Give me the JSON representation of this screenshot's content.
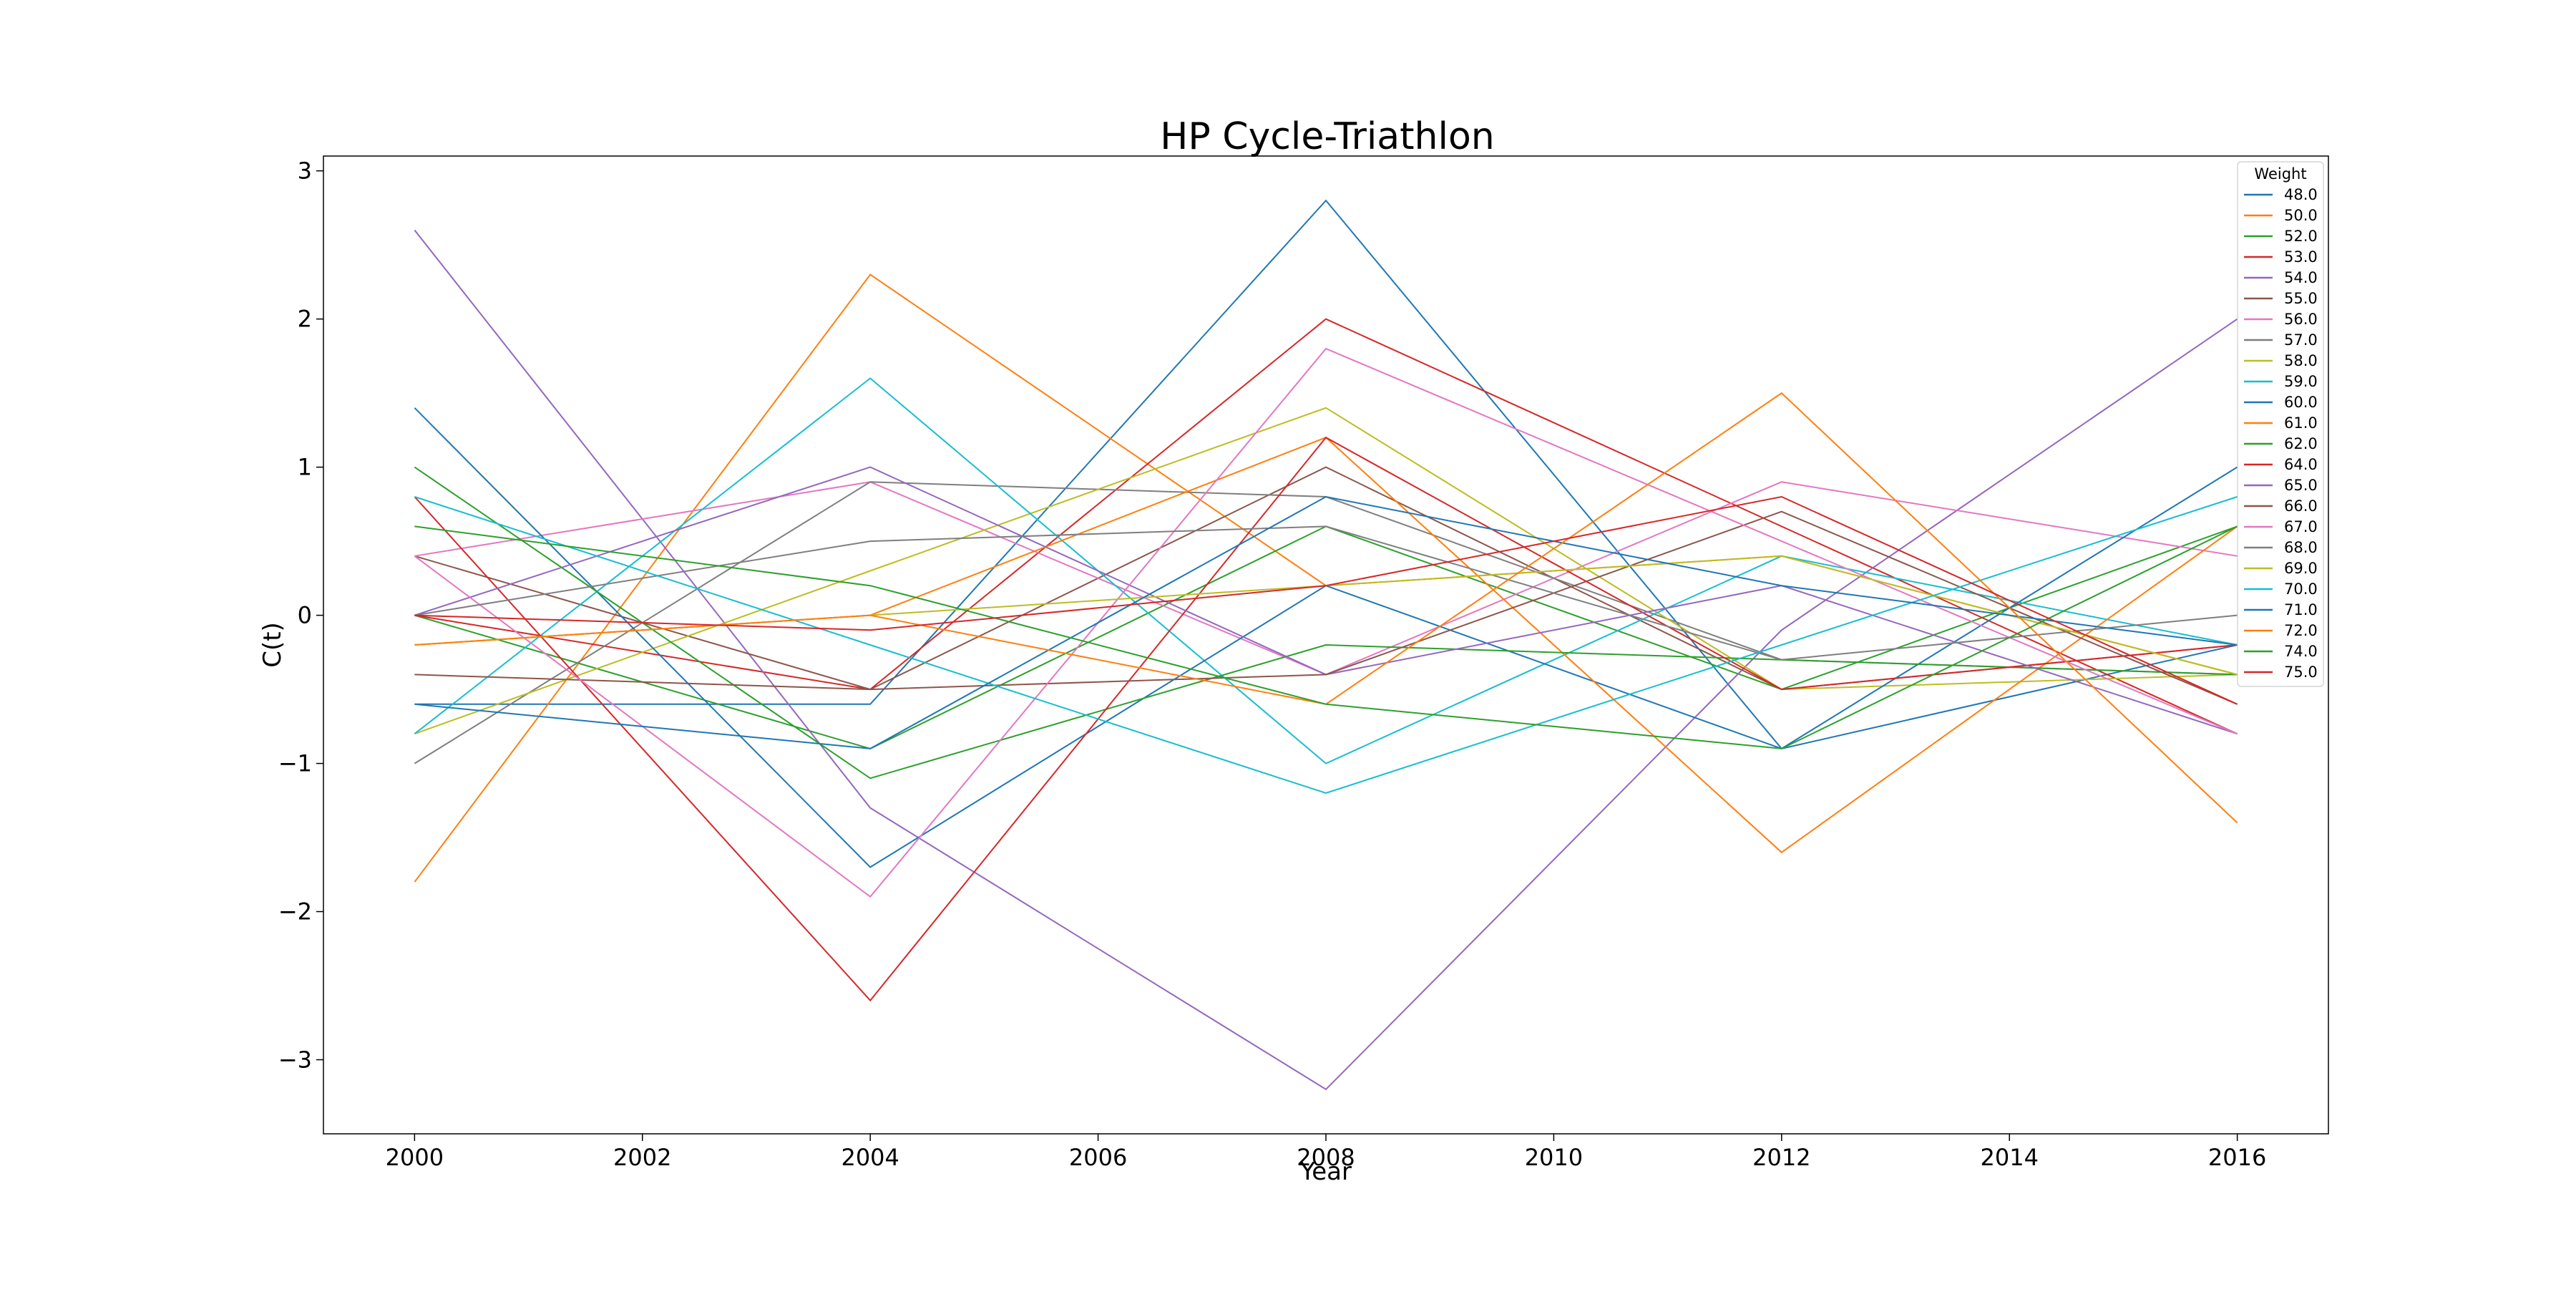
{
  "chart_data": {
    "type": "line",
    "title": "HP Cycle-Triathlon",
    "xlabel": "Year",
    "ylabel": "C(t)",
    "x": [
      2000,
      2004,
      2008,
      2012,
      2016
    ],
    "xlim": [
      1999.2,
      2016.8
    ],
    "ylim": [
      -3.5,
      3.1
    ],
    "xticks": [
      "2000",
      "2002",
      "2004",
      "2006",
      "2008",
      "2010",
      "2012",
      "2014",
      "2016"
    ],
    "yticks": [
      "3",
      "2",
      "1",
      "0",
      "−1",
      "−2",
      "−3"
    ],
    "grid": false,
    "legend": {
      "title": "Weight",
      "placement": "top-right"
    },
    "series": [
      {
        "name": "48.0",
        "color": "#1f77b4",
        "values": [
          -0.6,
          -0.6,
          2.8,
          -0.9,
          -0.2
        ]
      },
      {
        "name": "50.0",
        "color": "#ff7f0e",
        "values": [
          -1.8,
          2.3,
          0.2,
          0.4,
          -0.4
        ]
      },
      {
        "name": "52.0",
        "color": "#2ca02c",
        "values": [
          0.0,
          -0.9,
          0.6,
          -0.5,
          0.6
        ]
      },
      {
        "name": "53.0",
        "color": "#d62728",
        "values": [
          0.0,
          -0.5,
          2.0,
          0.6,
          -0.8
        ]
      },
      {
        "name": "54.0",
        "color": "#9467bd",
        "values": [
          2.6,
          -1.3,
          -3.2,
          -0.1,
          2.0
        ]
      },
      {
        "name": "55.0",
        "color": "#8c564b",
        "values": [
          0.4,
          -0.5,
          1.0,
          -0.5,
          -0.2
        ]
      },
      {
        "name": "56.0",
        "color": "#e377c2",
        "values": [
          0.4,
          0.9,
          -0.4,
          0.9,
          0.4
        ]
      },
      {
        "name": "57.0",
        "color": "#7f7f7f",
        "values": [
          -1.0,
          0.9,
          0.8,
          -0.3,
          -0.4
        ]
      },
      {
        "name": "58.0",
        "color": "#bcbd22",
        "values": [
          -0.8,
          0.3,
          1.4,
          -0.5,
          -0.4
        ]
      },
      {
        "name": "59.0",
        "color": "#17becf",
        "values": [
          -0.8,
          1.6,
          -1.0,
          0.4,
          -0.2
        ]
      },
      {
        "name": "60.0",
        "color": "#1f77b4",
        "values": [
          1.4,
          -1.7,
          0.2,
          -0.9,
          1.0
        ]
      },
      {
        "name": "61.0",
        "color": "#ff7f0e",
        "values": [
          -0.2,
          0.0,
          1.2,
          -1.6,
          0.6
        ]
      },
      {
        "name": "62.0",
        "color": "#2ca02c",
        "values": [
          1.0,
          -1.1,
          -0.2,
          -0.3,
          -0.4
        ]
      },
      {
        "name": "64.0",
        "color": "#d62728",
        "values": [
          0.8,
          -2.6,
          1.2,
          -0.5,
          -0.2
        ]
      },
      {
        "name": "65.0",
        "color": "#9467bd",
        "values": [
          0.0,
          1.0,
          -0.4,
          0.2,
          -0.8
        ]
      },
      {
        "name": "66.0",
        "color": "#8c564b",
        "values": [
          -0.4,
          -0.5,
          -0.4,
          0.7,
          -0.6
        ]
      },
      {
        "name": "67.0",
        "color": "#e377c2",
        "values": [
          0.4,
          -1.9,
          1.8,
          0.5,
          -0.8
        ]
      },
      {
        "name": "68.0",
        "color": "#7f7f7f",
        "values": [
          0.0,
          0.5,
          0.6,
          -0.3,
          0.0
        ]
      },
      {
        "name": "69.0",
        "color": "#bcbd22",
        "values": [
          -0.2,
          0.0,
          0.2,
          0.4,
          -0.4
        ]
      },
      {
        "name": "70.0",
        "color": "#17becf",
        "values": [
          0.8,
          -0.2,
          -1.2,
          -0.2,
          0.8
        ]
      },
      {
        "name": "71.0",
        "color": "#1f77b4",
        "values": [
          -0.6,
          -0.9,
          0.8,
          0.2,
          -0.2
        ]
      },
      {
        "name": "72.0",
        "color": "#ff7f0e",
        "values": [
          -0.2,
          0.0,
          -0.6,
          1.5,
          -1.4
        ]
      },
      {
        "name": "74.0",
        "color": "#2ca02c",
        "values": [
          0.6,
          0.2,
          -0.6,
          -0.9,
          0.6
        ]
      },
      {
        "name": "75.0",
        "color": "#d62728",
        "values": [
          0.0,
          -0.1,
          0.2,
          0.8,
          -0.6
        ]
      }
    ]
  }
}
